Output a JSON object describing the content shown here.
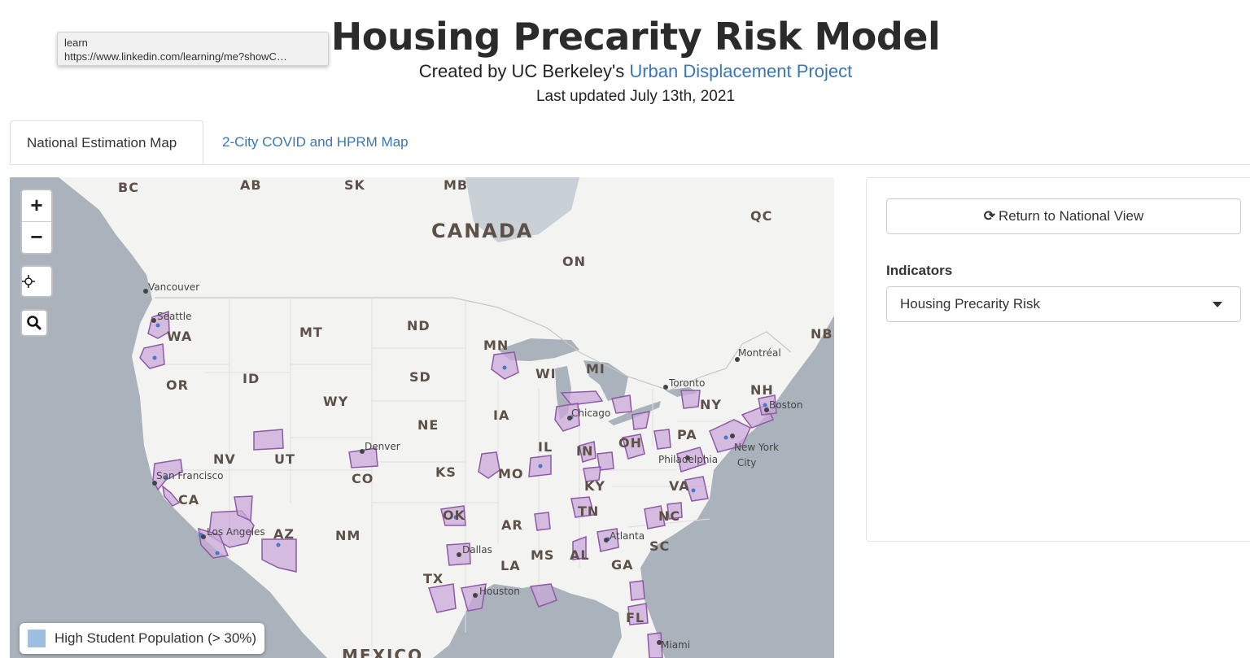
{
  "tooltip": {
    "line1": "learn",
    "line2": "https://www.linkedin.com/learning/me?showC…"
  },
  "header": {
    "title": "Housing Precarity Risk Model",
    "subtitle_prefix": "Created by UC Berkeley's ",
    "subtitle_link": "Urban Displacement Project",
    "updated": "Last updated July 13th, 2021"
  },
  "tabs": [
    {
      "label": "National Estimation Map",
      "active": true
    },
    {
      "label": "2-City COVID and HPRM Map",
      "active": false
    }
  ],
  "map": {
    "zoom_in": "+",
    "zoom_out": "−",
    "locate_icon": "crosshair-icon",
    "search_icon": "magnifier-icon",
    "labels": {
      "countries": [
        "CANADA",
        "MEXICO"
      ],
      "provinces": [
        "BC",
        "AB",
        "SK",
        "MB",
        "ON",
        "QC",
        "NB"
      ],
      "states": [
        "WA",
        "OR",
        "CA",
        "ID",
        "NV",
        "MT",
        "WY",
        "UT",
        "AZ",
        "CO",
        "NM",
        "ND",
        "SD",
        "NE",
        "KS",
        "OK",
        "TX",
        "MN",
        "IA",
        "MO",
        "AR",
        "LA",
        "WI",
        "IL",
        "MS",
        "MI",
        "IN",
        "KY",
        "TN",
        "AL",
        "OH",
        "GA",
        "FL",
        "PA",
        "NY",
        "VA",
        "NC",
        "SC",
        "NH"
      ],
      "cities": [
        "Vancouver",
        "Seattle",
        "San Francisco",
        "Los Angeles",
        "Denver",
        "Dallas",
        "Houston",
        "Chicago",
        "Atlanta",
        "Toronto",
        "Montréal",
        "Boston",
        "New York City",
        "Philadelphia",
        "Miami"
      ]
    },
    "colors": {
      "land": "#f3f3f1",
      "water": "#aab3bb",
      "region_fill": "#c9a8d8",
      "region_stroke": "#8e5aa6",
      "dot": "#4a78c8"
    }
  },
  "legend": {
    "label": "High Student Population (> 30%)",
    "color": "#9fbfe0"
  },
  "panel": {
    "return_label": "Return to National View",
    "indicators_label": "Indicators",
    "selected_indicator": "Housing Precarity Risk"
  }
}
